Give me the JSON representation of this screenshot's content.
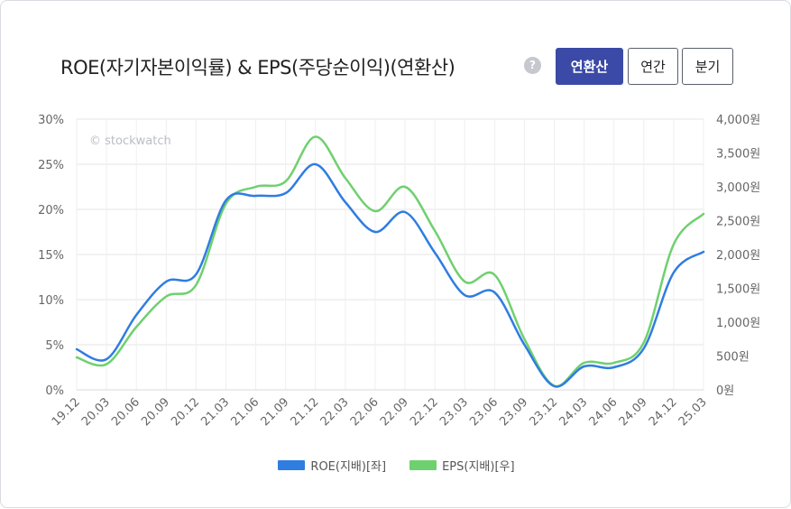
{
  "header": {
    "title": "ROE(자기자본이익률) & EPS(주당순이익)(연환산)",
    "help_icon": "?",
    "buttons": [
      {
        "label": "연환산",
        "active": true
      },
      {
        "label": "연간",
        "active": false
      },
      {
        "label": "분기",
        "active": false
      }
    ]
  },
  "watermark": "© stockwatch",
  "chart_data": {
    "type": "line",
    "x": [
      "19.12",
      "20.03",
      "20.06",
      "20.09",
      "20.12",
      "21.03",
      "21.06",
      "21.09",
      "21.12",
      "22.03",
      "22.06",
      "22.09",
      "22.12",
      "23.03",
      "23.06",
      "23.09",
      "23.12",
      "24.03",
      "24.06",
      "24.09",
      "24.12",
      "25.03"
    ],
    "series": [
      {
        "name": "ROE(지배)[좌]",
        "axis": "left",
        "color": "#2f7de1",
        "values": [
          4.5,
          3.4,
          8.3,
          12.0,
          12.8,
          21.0,
          21.5,
          21.8,
          25.0,
          20.8,
          17.5,
          19.7,
          15.2,
          10.5,
          10.8,
          5.0,
          0.4,
          2.6,
          2.5,
          4.6,
          13.0,
          15.3
        ]
      },
      {
        "name": "EPS(지배)[우]",
        "axis": "right",
        "color": "#6fd06f",
        "values": [
          480,
          380,
          930,
          1380,
          1550,
          2750,
          3000,
          3080,
          3740,
          3130,
          2640,
          3000,
          2350,
          1600,
          1700,
          750,
          60,
          400,
          400,
          700,
          2150,
          2600
        ]
      }
    ],
    "yleft": {
      "min": 0,
      "max": 30,
      "ticks": [
        "0%",
        "5%",
        "10%",
        "15%",
        "20%",
        "25%",
        "30%"
      ]
    },
    "yright": {
      "min": 0,
      "max": 4000,
      "ticks": [
        "0원",
        "500원",
        "1,000원",
        "1,500원",
        "2,000원",
        "2,500원",
        "3,000원",
        "3,500원",
        "4,000원"
      ]
    },
    "grid": true,
    "legend_position": "bottom"
  },
  "legend": [
    {
      "label": "ROE(지배)[좌]",
      "color": "#2f7de1"
    },
    {
      "label": "EPS(지배)[우]",
      "color": "#6fd06f"
    }
  ]
}
